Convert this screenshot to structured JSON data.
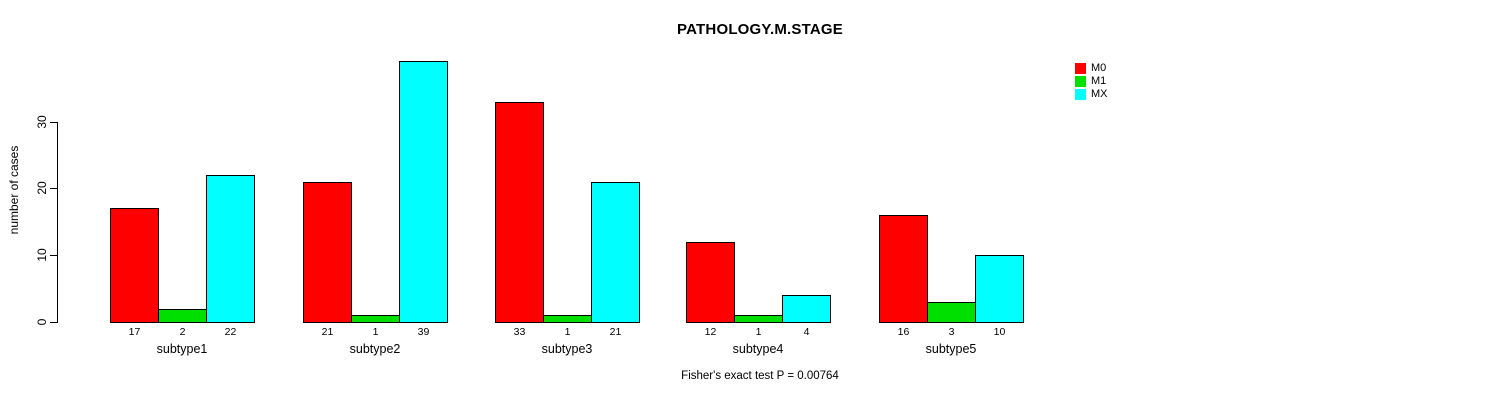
{
  "chart_data": {
    "type": "bar",
    "title": "PATHOLOGY.M.STAGE",
    "ylabel": "number of cases",
    "footnote": "Fisher's exact test P = 0.00764",
    "categories": [
      "subtype1",
      "subtype2",
      "subtype3",
      "subtype4",
      "subtype5"
    ],
    "series": [
      {
        "name": "M0",
        "color": "#ff0000",
        "values": [
          17,
          21,
          33,
          12,
          16
        ]
      },
      {
        "name": "M1",
        "color": "#00e000",
        "values": [
          2,
          1,
          1,
          1,
          3
        ]
      },
      {
        "name": "MX",
        "color": "#00ffff",
        "values": [
          22,
          39,
          21,
          4,
          10
        ]
      }
    ],
    "yticks": [
      0,
      10,
      20,
      30
    ],
    "ylim": [
      0,
      39
    ],
    "grid": false,
    "legend_position": "top-right",
    "bar_value_labels": true,
    "background_color": "#ffffff",
    "axis_color": "#000000"
  }
}
